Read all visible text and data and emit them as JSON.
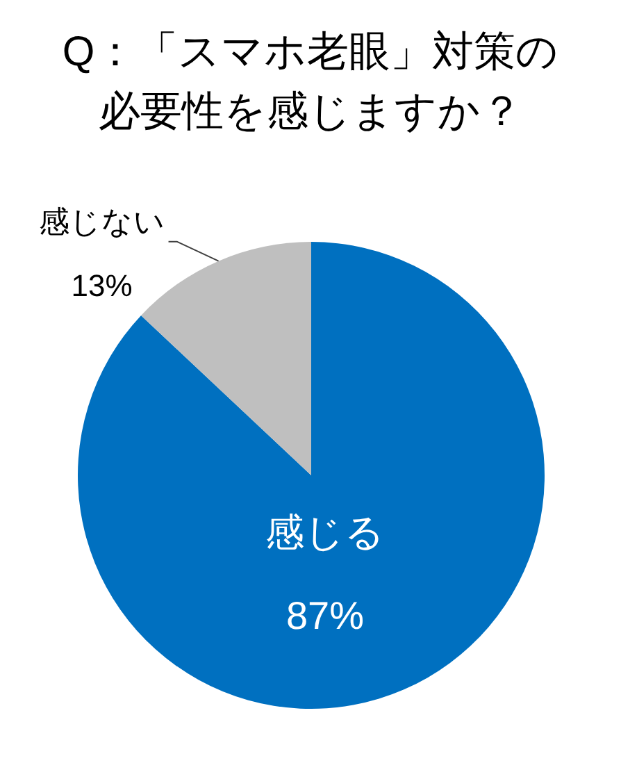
{
  "chart_data": {
    "type": "pie",
    "title": "Q：「スマホ老眼」対策の必要性を感じますか？",
    "categories": [
      "感じる",
      "感じない"
    ],
    "values": [
      87,
      13
    ],
    "colors": [
      "#0070c0",
      "#bfbfbf"
    ],
    "value_labels": [
      "87%",
      "13%"
    ]
  }
}
